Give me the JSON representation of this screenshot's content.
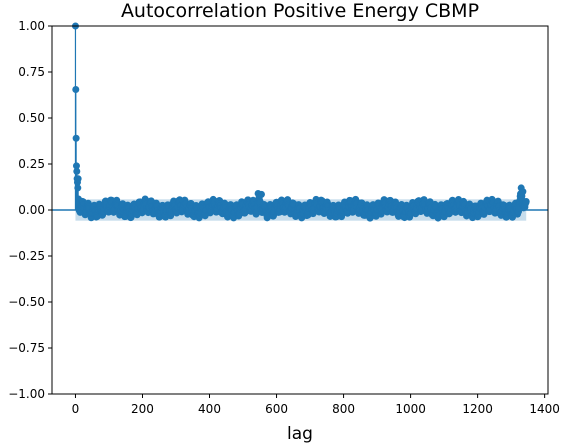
{
  "chart_data": {
    "type": "scatter",
    "title": "Autocorrelation Positive Energy CBMP",
    "xlabel": "lag",
    "ylabel": "",
    "xlim": [
      -70,
      1410
    ],
    "ylim": [
      -1.0,
      1.0
    ],
    "xticks": [
      0,
      200,
      400,
      600,
      800,
      1000,
      1200,
      1400
    ],
    "yticks": [
      -1.0,
      -0.75,
      -0.5,
      -0.25,
      0.0,
      0.25,
      0.5,
      0.75,
      1.0
    ],
    "xtick_labels": [
      "0",
      "200",
      "400",
      "600",
      "800",
      "1000",
      "1200",
      "1400"
    ],
    "ytick_labels": [
      "−1.00",
      "−0.75",
      "−0.50",
      "−0.25",
      "0.00",
      "0.25",
      "0.50",
      "0.75",
      "1.00"
    ],
    "grid": false,
    "confidence_band": {
      "lower": -0.058,
      "upper": 0.058,
      "x_start": 0,
      "x_end": 1345
    },
    "colors": {
      "series": "#1f77b4",
      "band": "#1f77b4"
    },
    "max_lag": 1345,
    "key_points": [
      {
        "x": 0,
        "y": 1.0
      },
      {
        "x": 1,
        "y": 0.655
      },
      {
        "x": 2,
        "y": 0.39
      },
      {
        "x": 3,
        "y": 0.24
      },
      {
        "x": 4,
        "y": 0.21
      },
      {
        "x": 5,
        "y": 0.17
      },
      {
        "x": 6,
        "y": 0.15
      },
      {
        "x": 7,
        "y": 0.12
      },
      {
        "x": 8,
        "y": 0.17
      },
      {
        "x": 9,
        "y": 0.06
      },
      {
        "x": 10,
        "y": 0.04
      },
      {
        "x": 545,
        "y": 0.09
      },
      {
        "x": 555,
        "y": 0.085
      },
      {
        "x": 1330,
        "y": 0.12
      },
      {
        "x": 1335,
        "y": 0.1
      }
    ],
    "background_range": [
      -0.045,
      0.06
    ]
  }
}
